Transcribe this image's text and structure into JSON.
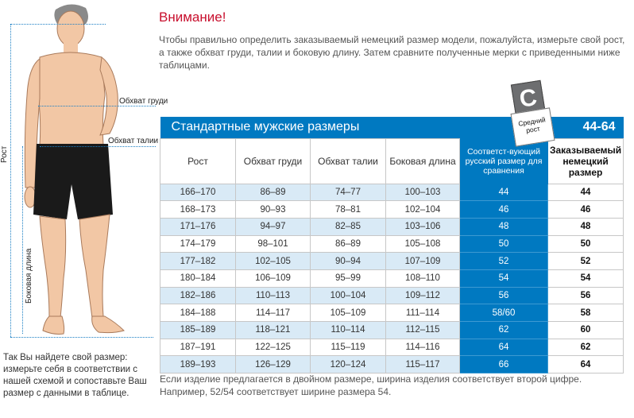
{
  "figure": {
    "height_label": "Рост",
    "chest_label": "Обхват груди",
    "waist_label": "Обхват талии",
    "side_label": "Боковая длина"
  },
  "caption": "Так Вы найдете свой размер: измерьте себя в соответствии с нашей схемой и сопоставьте Ваш размер с данными в таблице.",
  "title": "Внимание!",
  "intro": "Чтобы правильно определить заказываемый немецкий размер модели, пожалуйста, измерьте свой рост, а также обхват груди, талии и боковую длину. Затем сравните полученные мерки с приведенными ниже таблицами.",
  "badge": {
    "letter": "C",
    "note": "Средний рост"
  },
  "table": {
    "title": "Стандартные мужские размеры",
    "range": "44-64",
    "headers": [
      "Рост",
      "Обхват груди",
      "Обхват талии",
      "Боковая длина",
      "Соответст-вующий русский размер для сравнения",
      "Заказываемый немецкий размер"
    ],
    "rows": [
      [
        "166–170",
        "86–89",
        "74–77",
        "100–103",
        "44",
        "44"
      ],
      [
        "168–173",
        "90–93",
        "78–81",
        "102–104",
        "46",
        "46"
      ],
      [
        "171–176",
        "94–97",
        "82–85",
        "103–106",
        "48",
        "48"
      ],
      [
        "174–179",
        "98–101",
        "86–89",
        "105–108",
        "50",
        "50"
      ],
      [
        "177–182",
        "102–105",
        "90–94",
        "107–109",
        "52",
        "52"
      ],
      [
        "180–184",
        "106–109",
        "95–99",
        "108–110",
        "54",
        "54"
      ],
      [
        "182–186",
        "110–113",
        "100–104",
        "109–112",
        "56",
        "56"
      ],
      [
        "184–188",
        "114–117",
        "105–109",
        "111–114",
        "58/60",
        "58"
      ],
      [
        "185–189",
        "118–121",
        "110–114",
        "112–115",
        "62",
        "60"
      ],
      [
        "187–191",
        "122–125",
        "115–119",
        "114–116",
        "64",
        "62"
      ],
      [
        "189–193",
        "126–129",
        "120–124",
        "115–117",
        "66",
        "64"
      ]
    ]
  },
  "footnote": "Если изделие предлагается в двойном размере, ширина изделия соответствует второй цифре. Например, 52/54 соответствует ширине размера 54.",
  "colors": {
    "accent_blue": "#0079c1",
    "light_row": "#d9eaf6",
    "title_red": "#c8102e",
    "badge_gray": "#6d6e70"
  }
}
